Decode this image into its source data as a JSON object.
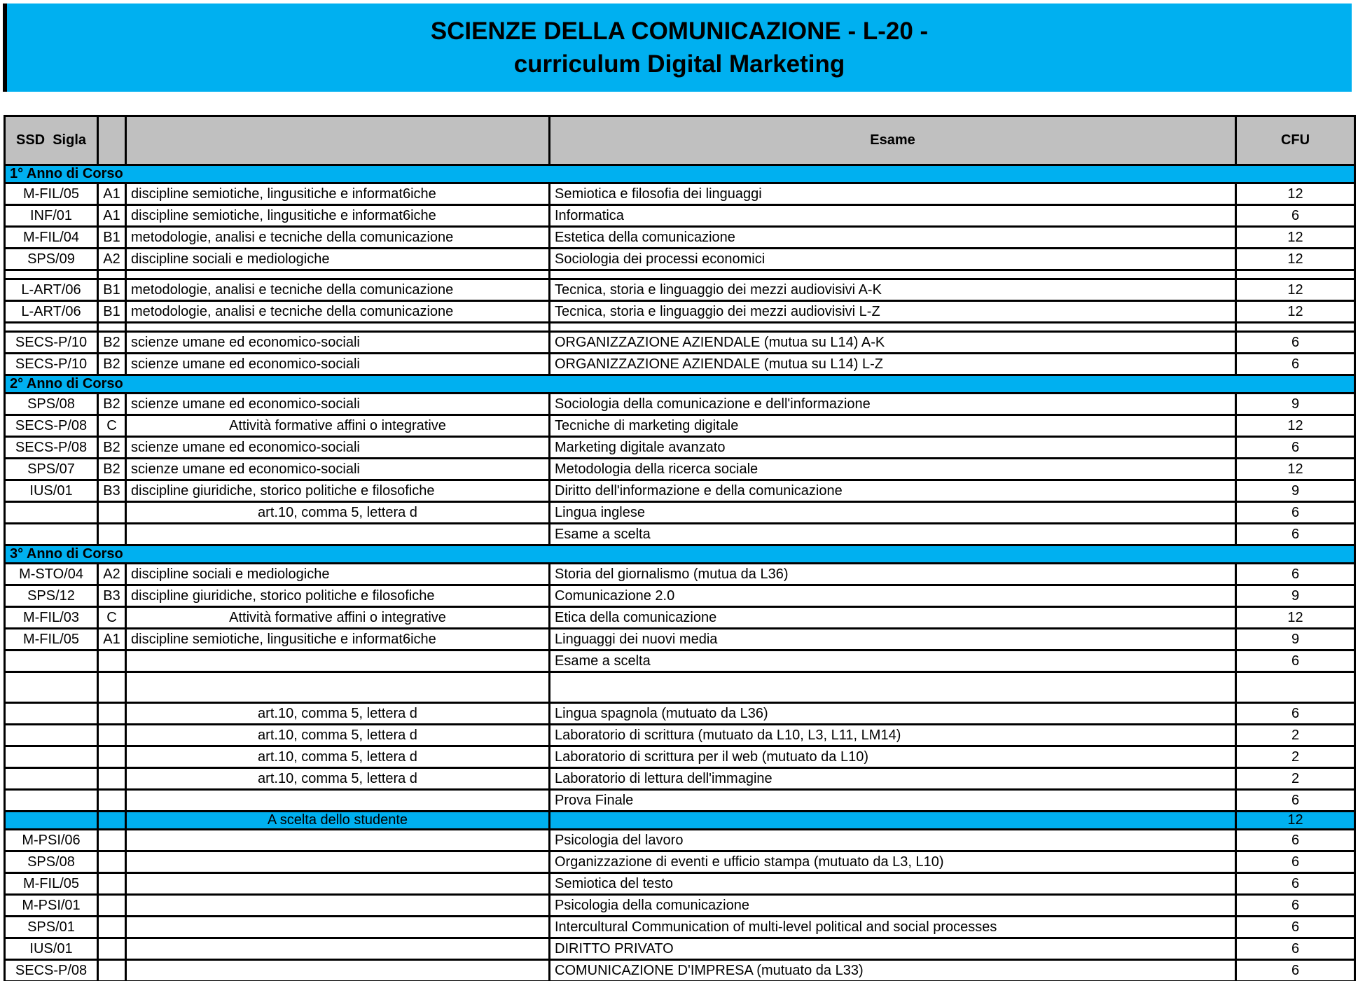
{
  "title": {
    "line1": "SCIENZE DELLA COMUNICAZIONE - L-20 -",
    "line2": "curriculum Digital Marketing"
  },
  "colors": {
    "accent_cyan": "#00B0F0",
    "header_gray": "#C0C0C0",
    "border_black": "#000000"
  },
  "table": {
    "headers": {
      "ssd_sigla": "SSD  Sigla",
      "esame": "Esame",
      "cfu": "CFU"
    },
    "rows": [
      {
        "type": "section",
        "label": "1° Anno di Corso"
      },
      {
        "type": "course",
        "ssd": "M-FIL/05",
        "sigla": "A1",
        "area": "discipline semiotiche, lingusitiche e informat6iche",
        "area_centered": false,
        "esame": "Semiotica e filosofia dei linguaggi",
        "cfu": "12"
      },
      {
        "type": "course",
        "ssd": "INF/01",
        "sigla": "A1",
        "area": "discipline semiotiche, lingusitiche e informat6iche",
        "area_centered": false,
        "esame": "Informatica",
        "cfu": "6"
      },
      {
        "type": "course",
        "ssd": "M-FIL/04",
        "sigla": "B1",
        "area": "metodologie, analisi e tecniche della comunicazione",
        "area_centered": false,
        "esame": "Estetica della comunicazione",
        "cfu": "12"
      },
      {
        "type": "course",
        "ssd": "SPS/09",
        "sigla": "A2",
        "area": "discipline sociali e mediologiche",
        "area_centered": false,
        "esame": "Sociologia dei processi economici",
        "cfu": "12"
      },
      {
        "type": "spacer"
      },
      {
        "type": "course",
        "ssd": "L-ART/06",
        "sigla": "B1",
        "area": "metodologie, analisi e tecniche della comunicazione",
        "area_centered": false,
        "esame": "Tecnica, storia e linguaggio dei mezzi audiovisivi A-K",
        "cfu": "12"
      },
      {
        "type": "course",
        "ssd": "L-ART/06",
        "sigla": "B1",
        "area": "metodologie, analisi e tecniche della comunicazione",
        "area_centered": false,
        "esame": "Tecnica, storia e linguaggio dei mezzi audiovisivi L-Z",
        "cfu": "12"
      },
      {
        "type": "spacer"
      },
      {
        "type": "course",
        "ssd": "SECS-P/10",
        "sigla": "B2",
        "area": "scienze umane ed economico-sociali",
        "area_centered": false,
        "esame": "ORGANIZZAZIONE AZIENDALE (mutua su L14) A-K",
        "cfu": "6"
      },
      {
        "type": "course",
        "ssd": "SECS-P/10",
        "sigla": "B2",
        "area": "scienze umane ed economico-sociali",
        "area_centered": false,
        "esame": "ORGANIZZAZIONE AZIENDALE (mutua su L14) L-Z",
        "cfu": "6"
      },
      {
        "type": "section",
        "label": "2° Anno di Corso"
      },
      {
        "type": "course",
        "ssd": "SPS/08",
        "sigla": "B2",
        "area": "scienze umane ed economico-sociali",
        "area_centered": false,
        "esame": "Sociologia della comunicazione e dell'informazione",
        "cfu": "9"
      },
      {
        "type": "course",
        "ssd": "SECS-P/08",
        "sigla": "C",
        "area": "Attività formative affini o integrative",
        "area_centered": true,
        "esame": "Tecniche di marketing digitale",
        "cfu": "12"
      },
      {
        "type": "course",
        "ssd": "SECS-P/08",
        "sigla": "B2",
        "area": "scienze umane ed economico-sociali",
        "area_centered": false,
        "esame": "Marketing digitale avanzato",
        "cfu": "6"
      },
      {
        "type": "course",
        "ssd": "SPS/07",
        "sigla": "B2",
        "area": "scienze umane ed economico-sociali",
        "area_centered": false,
        "esame": "Metodologia della ricerca sociale",
        "cfu": "12"
      },
      {
        "type": "course",
        "ssd": "IUS/01",
        "sigla": "B3",
        "area": "discipline giuridiche, storico politiche e filosofiche",
        "area_centered": false,
        "esame": "Diritto dell'informazione e della comunicazione",
        "cfu": "9"
      },
      {
        "type": "course",
        "ssd": "",
        "sigla": "",
        "area": "art.10, comma 5, lettera d",
        "area_centered": true,
        "esame": "Lingua inglese",
        "cfu": "6"
      },
      {
        "type": "course",
        "ssd": "",
        "sigla": "",
        "area": "",
        "area_centered": false,
        "esame": "Esame a scelta",
        "cfu": "6"
      },
      {
        "type": "section",
        "label": "3° Anno di Corso"
      },
      {
        "type": "course",
        "ssd": "M-STO/04",
        "sigla": "A2",
        "area": "discipline sociali e mediologiche",
        "area_centered": false,
        "esame": "Storia del giornalismo (mutua da L36)",
        "cfu": "6"
      },
      {
        "type": "course",
        "ssd": "SPS/12",
        "sigla": "B3",
        "area": "discipline giuridiche, storico politiche e filosofiche",
        "area_centered": false,
        "esame": "Comunicazione 2.0",
        "cfu": "9"
      },
      {
        "type": "course",
        "ssd": "M-FIL/03",
        "sigla": "C",
        "area": "Attività formative affini o integrative",
        "area_centered": true,
        "esame": "Etica della comunicazione",
        "cfu": "12"
      },
      {
        "type": "course",
        "ssd": "M-FIL/05",
        "sigla": "A1",
        "area": "discipline semiotiche, lingusitiche e informat6iche",
        "area_centered": false,
        "esame": "Linguaggi dei nuovi media",
        "cfu": "9"
      },
      {
        "type": "course",
        "ssd": "",
        "sigla": "",
        "area": "",
        "area_centered": false,
        "esame": "Esame a scelta",
        "cfu": "6"
      },
      {
        "type": "spacer_tall"
      },
      {
        "type": "course",
        "ssd": "",
        "sigla": "",
        "area": "art.10, comma 5, lettera d",
        "area_centered": true,
        "esame": "Lingua spagnola (mutuato da L36)",
        "cfu": "6"
      },
      {
        "type": "course",
        "ssd": "",
        "sigla": "",
        "area": "art.10, comma 5, lettera d",
        "area_centered": true,
        "esame": "Laboratorio di scrittura (mutuato da L10, L3, L11, LM14)",
        "cfu": "2"
      },
      {
        "type": "course",
        "ssd": "",
        "sigla": "",
        "area": "art.10, comma 5, lettera d",
        "area_centered": true,
        "esame": "Laboratorio di scrittura per il web (mutuato da L10)",
        "cfu": "2"
      },
      {
        "type": "course",
        "ssd": "",
        "sigla": "",
        "area": "art.10, comma 5, lettera d",
        "area_centered": true,
        "esame": "Laboratorio di lettura dell'immagine",
        "cfu": "2"
      },
      {
        "type": "course",
        "ssd": "",
        "sigla": "",
        "area": "",
        "area_centered": false,
        "esame": "Prova Finale",
        "cfu": "6"
      },
      {
        "type": "choice",
        "label": "A scelta dello studente",
        "cfu": "12"
      },
      {
        "type": "course",
        "ssd": "M-PSI/06",
        "sigla": "",
        "area": "",
        "area_centered": false,
        "esame": "Psicologia del lavoro",
        "cfu": "6"
      },
      {
        "type": "course",
        "ssd": "SPS/08",
        "sigla": "",
        "area": "",
        "area_centered": false,
        "esame": "Organizzazione di eventi e ufficio stampa (mutuato da L3, L10)",
        "cfu": "6"
      },
      {
        "type": "course",
        "ssd": "M-FIL/05",
        "sigla": "",
        "area": "",
        "area_centered": false,
        "esame": "Semiotica del testo",
        "cfu": "6"
      },
      {
        "type": "course",
        "ssd": "M-PSI/01",
        "sigla": "",
        "area": "",
        "area_centered": false,
        "esame": "Psicologia della comunicazione",
        "cfu": "6"
      },
      {
        "type": "course",
        "ssd": "SPS/01",
        "sigla": "",
        "area": "",
        "area_centered": false,
        "esame": "Intercultural Communication of multi-level political and social processes",
        "cfu": "6"
      },
      {
        "type": "course",
        "ssd": "IUS/01",
        "sigla": "",
        "area": "",
        "area_centered": false,
        "esame": "DIRITTO PRIVATO",
        "cfu": "6"
      },
      {
        "type": "course",
        "ssd": "SECS-P/08",
        "sigla": "",
        "area": "",
        "area_centered": false,
        "esame": "COMUNICAZIONE D'IMPRESA (mutuato da L33)",
        "cfu": "6"
      }
    ]
  }
}
